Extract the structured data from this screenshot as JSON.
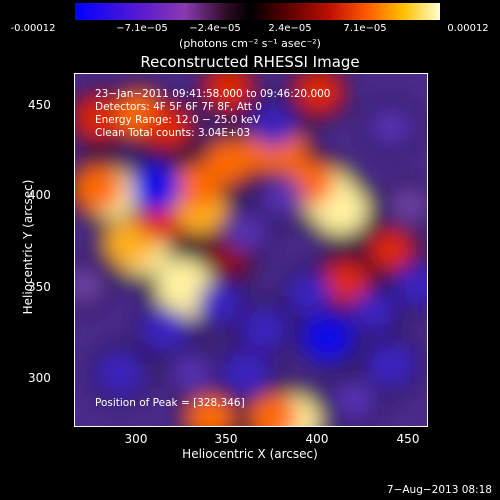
{
  "colorbar": {
    "ticks": [
      "-0.00012",
      "−7.1e−05",
      "−2.4e−05",
      "2.4e−05",
      "7.1e−05",
      "0.00012"
    ],
    "unit": "(photons cm⁻² s⁻¹ asec⁻²)"
  },
  "chart_data": {
    "type": "heatmap",
    "title": "Reconstructed RHESSI Image",
    "xlabel": "Heliocentric X (arcsec)",
    "ylabel": "Heliocentric Y (arcsec)",
    "xlim": [
      265,
      460
    ],
    "ylim": [
      270,
      470
    ],
    "xticks": [
      "300",
      "350",
      "400",
      "450"
    ],
    "yticks": [
      "450",
      "400",
      "350",
      "300"
    ],
    "xtick_values": [
      300,
      350,
      400,
      450
    ],
    "ytick_values": [
      450,
      400,
      350,
      300
    ],
    "value_range": [
      -0.00012,
      0.00012
    ],
    "colormap": "blue-purple-black-red-orange-yellow-white",
    "peak_position": [
      328,
      346
    ],
    "blobs": [
      {
        "x": 327,
        "y": 346,
        "v": 1.0
      },
      {
        "x": 325,
        "y": 351,
        "v": 0.9
      },
      {
        "x": 385,
        "y": 273,
        "v": 1.0
      },
      {
        "x": 375,
        "y": 275,
        "v": 0.7
      },
      {
        "x": 404,
        "y": 402,
        "v": 0.95
      },
      {
        "x": 412,
        "y": 393,
        "v": 0.9
      },
      {
        "x": 395,
        "y": 408,
        "v": 0.7
      },
      {
        "x": 285,
        "y": 402,
        "v": 0.9
      },
      {
        "x": 278,
        "y": 405,
        "v": 0.7
      },
      {
        "x": 302,
        "y": 370,
        "v": 0.9
      },
      {
        "x": 296,
        "y": 374,
        "v": 0.8
      },
      {
        "x": 334,
        "y": 393,
        "v": 0.85
      },
      {
        "x": 332,
        "y": 406,
        "v": 0.65
      },
      {
        "x": 350,
        "y": 420,
        "v": 0.6
      },
      {
        "x": 372,
        "y": 427,
        "v": 0.7
      },
      {
        "x": 380,
        "y": 428,
        "v": 0.6
      },
      {
        "x": 300,
        "y": 447,
        "v": 0.65
      },
      {
        "x": 316,
        "y": 440,
        "v": 0.55
      },
      {
        "x": 278,
        "y": 445,
        "v": 0.55
      },
      {
        "x": 350,
        "y": 462,
        "v": 0.55
      },
      {
        "x": 400,
        "y": 460,
        "v": 0.55
      },
      {
        "x": 340,
        "y": 275,
        "v": 0.6
      },
      {
        "x": 415,
        "y": 352,
        "v": 0.55
      },
      {
        "x": 440,
        "y": 370,
        "v": 0.45
      },
      {
        "x": 312,
        "y": 386,
        "v": 0.45
      },
      {
        "x": 350,
        "y": 366,
        "v": 0.35
      },
      {
        "x": 310,
        "y": 405,
        "v": -0.75
      },
      {
        "x": 315,
        "y": 325,
        "v": -0.65
      },
      {
        "x": 345,
        "y": 340,
        "v": -0.55
      },
      {
        "x": 370,
        "y": 325,
        "v": -0.55
      },
      {
        "x": 405,
        "y": 320,
        "v": -0.75
      },
      {
        "x": 440,
        "y": 305,
        "v": -0.65
      },
      {
        "x": 430,
        "y": 335,
        "v": -0.55
      },
      {
        "x": 290,
        "y": 300,
        "v": -0.55
      },
      {
        "x": 375,
        "y": 440,
        "v": -0.55
      },
      {
        "x": 440,
        "y": 440,
        "v": -0.45
      },
      {
        "x": 380,
        "y": 400,
        "v": -0.45
      },
      {
        "x": 360,
        "y": 380,
        "v": -0.45
      },
      {
        "x": 330,
        "y": 300,
        "v": -0.45
      },
      {
        "x": 395,
        "y": 345,
        "v": -0.55
      },
      {
        "x": 270,
        "y": 350,
        "v": -0.35
      },
      {
        "x": 450,
        "y": 395,
        "v": -0.35
      },
      {
        "x": 420,
        "y": 285,
        "v": -0.45
      },
      {
        "x": 360,
        "y": 300,
        "v": -0.65
      },
      {
        "x": 455,
        "y": 350,
        "v": -0.55
      }
    ]
  },
  "annotations": {
    "time_range": "23−Jan−2011 09:41:58.000 to 09:46:20.000",
    "detectors": "Detectors: 4F 5F 6F 7F 8F, Att 0",
    "energy": "Energy Range: 12.0 − 25.0 keV",
    "clean": "Clean    Total counts: 3.04E+03",
    "peak": "Position of Peak = [328,346]"
  },
  "footer": {
    "date": "7−Aug−2013 08:18"
  }
}
